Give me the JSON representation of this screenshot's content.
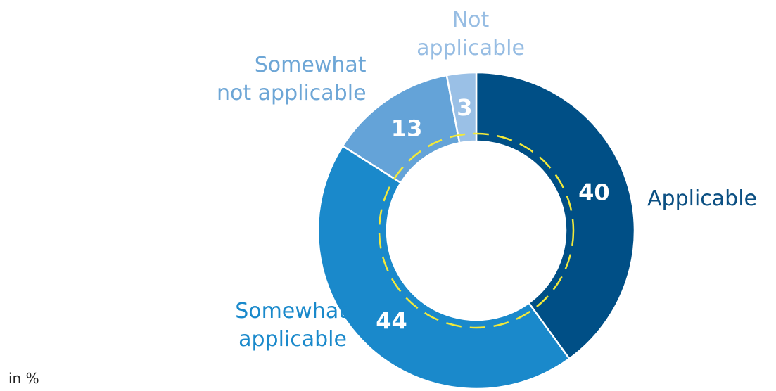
{
  "chart_data": {
    "type": "pie",
    "donut": true,
    "unit_note": "in %",
    "slices": [
      {
        "label_lines": [
          "Applicable"
        ],
        "value": 40,
        "color": "#004f86",
        "label_color": "#0b4f82",
        "label_side": "right"
      },
      {
        "label_lines": [
          "Somewhat",
          "applicable"
        ],
        "value": 44,
        "color": "#1a89cb",
        "label_color": "#1a89cb",
        "label_side": "left"
      },
      {
        "label_lines": [
          "Somewhat",
          "not applicable"
        ],
        "value": 13,
        "color": "#64a3d8",
        "label_color": "#6da6d6",
        "label_side": "left"
      },
      {
        "label_lines": [
          "Not",
          "applicable"
        ],
        "value": 3,
        "color": "#9ac0e6",
        "label_color": "#97bde3",
        "label_side": "top"
      }
    ],
    "reference_ring": {
      "style": "dashed",
      "color": "#f2e93a"
    }
  }
}
